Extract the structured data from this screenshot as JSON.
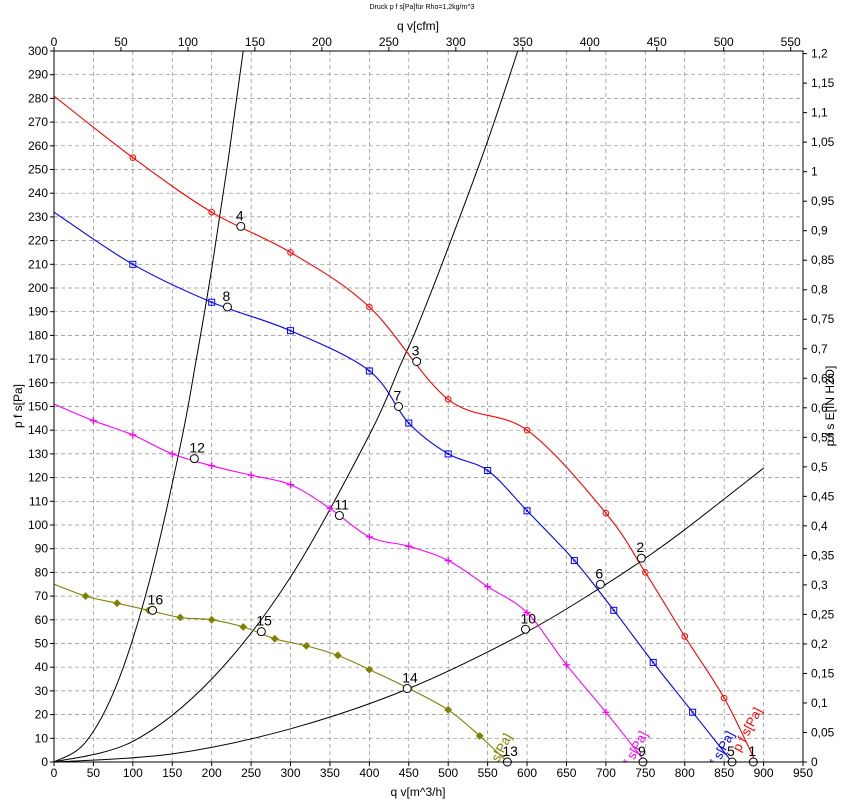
{
  "chart_data": {
    "type": "line",
    "title": "Druck p f s[Pa]für Rho=1,2kg/m^3",
    "xlabel": "q v[m^3/h]",
    "ylabel": "p f s[Pa]",
    "x2label": "q v[cfm]",
    "y2label": "p f s E[IN H2O]",
    "xlim": [
      0,
      950
    ],
    "ylim": [
      0,
      300
    ],
    "x2lim": [
      0,
      559.2
    ],
    "y2lim": [
      0,
      1.2044
    ],
    "xticks": [
      "0",
      "50",
      "100",
      "150",
      "200",
      "250",
      "300",
      "350",
      "400",
      "450",
      "500",
      "550",
      "600",
      "650",
      "700",
      "750",
      "800",
      "850",
      "900",
      "950"
    ],
    "yticks": [
      "0",
      "10",
      "20",
      "30",
      "40",
      "50",
      "60",
      "70",
      "80",
      "90",
      "100",
      "110",
      "120",
      "130",
      "140",
      "150",
      "160",
      "170",
      "180",
      "190",
      "200",
      "210",
      "220",
      "230",
      "240",
      "250",
      "260",
      "270",
      "280",
      "290",
      "300"
    ],
    "x2ticks": [
      "0",
      "50",
      "100",
      "150",
      "200",
      "250",
      "300",
      "350",
      "400",
      "450",
      "500",
      "550"
    ],
    "y2ticks": [
      "0",
      "0,05",
      "0,1",
      "0,15",
      "0,2",
      "0,25",
      "0,3",
      "0,35",
      "0,4",
      "0,45",
      "0,5",
      "0,55",
      "0,6",
      "0,65",
      "0,7",
      "0,75",
      "0,8",
      "0,85",
      "0,9",
      "0,95",
      "1",
      "1,05",
      "1,1",
      "1,15",
      "1,2"
    ],
    "grid": true,
    "series": [
      {
        "name": "p f s[Pa]",
        "color": "#ff0000",
        "marker": "circle",
        "x": [
          0,
          100,
          200,
          300,
          400,
          500,
          600,
          700,
          750,
          800,
          850,
          890
        ],
        "y": [
          281,
          255,
          232,
          215,
          192,
          153,
          140,
          105,
          80,
          53,
          27,
          0
        ],
        "label_pos": [
          870,
          4
        ]
      },
      {
        "name": "p f s[Pa]",
        "color": "#0000ff",
        "marker": "square",
        "x": [
          0,
          100,
          200,
          300,
          400,
          450,
          500,
          550,
          600,
          660,
          710,
          760,
          810,
          860
        ],
        "y": [
          232,
          210,
          194,
          182,
          165,
          143,
          130,
          123,
          106,
          85,
          64,
          42,
          21,
          0
        ],
        "label_pos": [
          835,
          -6
        ]
      },
      {
        "name": "p f s[Pa]",
        "color": "#ff00ff",
        "marker": "plus",
        "x": [
          0,
          50,
          100,
          150,
          200,
          250,
          300,
          350,
          400,
          450,
          500,
          550,
          600,
          650,
          700,
          750
        ],
        "y": [
          151,
          144,
          138,
          130,
          125,
          121,
          117,
          107,
          95,
          91,
          85,
          74,
          63,
          41,
          21,
          0
        ],
        "label_pos": [
          725,
          -6
        ]
      },
      {
        "name": "p f s[Pa]",
        "color": "#808000",
        "marker": "diamond",
        "x": [
          0,
          40,
          80,
          120,
          160,
          200,
          240,
          280,
          320,
          360,
          400,
          450,
          500,
          540,
          575
        ],
        "y": [
          75,
          70,
          67,
          64,
          61,
          60,
          57,
          52,
          49,
          45,
          39,
          31,
          22,
          11,
          0
        ],
        "label_pos": [
          553,
          -7
        ]
      }
    ],
    "system_curves": [
      {
        "x": [
          0,
          40,
          80,
          120,
          160,
          180,
          200,
          220,
          240,
          260
        ],
        "y": [
          0,
          8.3,
          33,
          75,
          133,
          169,
          208,
          252,
          300,
          352
        ]
      },
      {
        "x": [
          0,
          100,
          200,
          300,
          400,
          440,
          460,
          500,
          550,
          600
        ],
        "y": [
          0,
          8.7,
          35,
          78,
          138,
          168,
          183,
          217,
          262,
          312
        ]
      },
      {
        "x": [
          0,
          150,
          300,
          450,
          600,
          700,
          750,
          800,
          900
        ],
        "y": [
          0,
          3.4,
          14,
          31,
          55,
          75,
          86,
          98,
          124
        ]
      }
    ],
    "points": [
      {
        "label": "1",
        "x": 887,
        "y": 0
      },
      {
        "label": "2",
        "x": 745,
        "y": 86
      },
      {
        "label": "3",
        "x": 460,
        "y": 169
      },
      {
        "label": "4",
        "x": 237,
        "y": 226
      },
      {
        "label": "5",
        "x": 860,
        "y": 0
      },
      {
        "label": "6",
        "x": 693,
        "y": 75
      },
      {
        "label": "7",
        "x": 437,
        "y": 150
      },
      {
        "label": "8",
        "x": 220,
        "y": 192
      },
      {
        "label": "9",
        "x": 747,
        "y": 0
      },
      {
        "label": "10",
        "x": 598,
        "y": 56
      },
      {
        "label": "11",
        "x": 362,
        "y": 104
      },
      {
        "label": "12",
        "x": 178,
        "y": 128
      },
      {
        "label": "13",
        "x": 575,
        "y": 0
      },
      {
        "label": "14",
        "x": 448,
        "y": 31
      },
      {
        "label": "15",
        "x": 263,
        "y": 55
      },
      {
        "label": "16",
        "x": 125,
        "y": 64
      }
    ]
  }
}
